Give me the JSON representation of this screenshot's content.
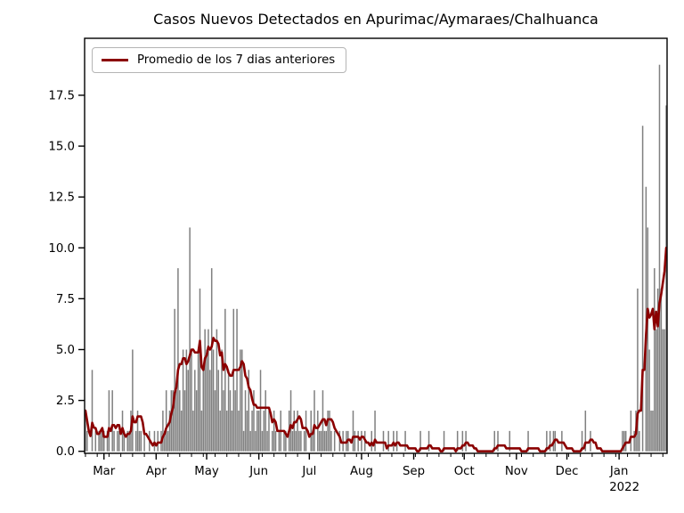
{
  "chart_data": {
    "type": "bar",
    "title": "Casos Nuevos Detectados en Apurimac/Aymaraes/Chalhuanca",
    "legend_label": "Promedio de los 7 dias anteriores",
    "legend_position": "upper left",
    "start_date": "2021-02-18",
    "daily_values": [
      2,
      1,
      0,
      0,
      4,
      0,
      1,
      0,
      1,
      1,
      1,
      1,
      0,
      1,
      3,
      0,
      3,
      1,
      0,
      1,
      1,
      0,
      2,
      1,
      0,
      1,
      1,
      2,
      5,
      0,
      1,
      2,
      1,
      1,
      0,
      1,
      0,
      0,
      1,
      0,
      0,
      1,
      0,
      1,
      0,
      1,
      2,
      1,
      3,
      1,
      2,
      3,
      3,
      7,
      3,
      9,
      3,
      2,
      5,
      3,
      5,
      4,
      11,
      5,
      2,
      4,
      3,
      5,
      8,
      2,
      4,
      6,
      5,
      6,
      4,
      9,
      5,
      3,
      6,
      4,
      2,
      5,
      3,
      7,
      2,
      4,
      3,
      2,
      7,
      3,
      7,
      2,
      5,
      5,
      1,
      3,
      2,
      4,
      1,
      2,
      3,
      1,
      2,
      2,
      4,
      1,
      2,
      3,
      1,
      2,
      0,
      1,
      2,
      1,
      0,
      1,
      2,
      0,
      1,
      1,
      0,
      2,
      3,
      1,
      2,
      1,
      2,
      1,
      1,
      0,
      1,
      2,
      0,
      0,
      2,
      1,
      3,
      0,
      2,
      1,
      1,
      3,
      1,
      1,
      2,
      2,
      1,
      0,
      1,
      0,
      0,
      1,
      0,
      1,
      0,
      1,
      1,
      0,
      0,
      2,
      1,
      0,
      1,
      0,
      1,
      0,
      1,
      0,
      0,
      0,
      1,
      0,
      2,
      0,
      0,
      0,
      0,
      1,
      0,
      0,
      1,
      0,
      0,
      1,
      0,
      1,
      0,
      0,
      0,
      0,
      1,
      0,
      0,
      0,
      0,
      0,
      0,
      0,
      0,
      1,
      0,
      0,
      0,
      0,
      1,
      0,
      0,
      0,
      0,
      0,
      0,
      0,
      0,
      1,
      0,
      0,
      0,
      0,
      0,
      0,
      0,
      1,
      0,
      0,
      1,
      0,
      1,
      0,
      0,
      0,
      0,
      0,
      0,
      0,
      0,
      0,
      0,
      0,
      0,
      0,
      0,
      0,
      0,
      1,
      0,
      1,
      0,
      0,
      0,
      0,
      0,
      0,
      1,
      0,
      0,
      0,
      0,
      0,
      0,
      0,
      0,
      0,
      0,
      1,
      0,
      0,
      0,
      0,
      0,
      0,
      0,
      0,
      0,
      0,
      1,
      0,
      1,
      0,
      1,
      1,
      0,
      0,
      0,
      1,
      0,
      0,
      0,
      0,
      0,
      0,
      0,
      0,
      0,
      0,
      0,
      1,
      0,
      2,
      0,
      0,
      1,
      0,
      0,
      0,
      0,
      0,
      0,
      0,
      0,
      0,
      0,
      0,
      0,
      0,
      0,
      0,
      0,
      0,
      0,
      1,
      1,
      1,
      0,
      0,
      2,
      0,
      1,
      2,
      8,
      1,
      0,
      16,
      0,
      13,
      11,
      5,
      2,
      2,
      9,
      6,
      8,
      19,
      8,
      6,
      6,
      17
    ],
    "series": [
      {
        "name": "Promedio de los 7 dias anteriores",
        "derived": "rolling_mean_window_7_of_daily_values"
      }
    ],
    "x_axis": {
      "month_ticks": [
        {
          "label": "Mar",
          "day": 11
        },
        {
          "label": "Apr",
          "day": 42
        },
        {
          "label": "May",
          "day": 72
        },
        {
          "label": "Jun",
          "day": 103
        },
        {
          "label": "Jul",
          "day": 133
        },
        {
          "label": "Aug",
          "day": 164
        },
        {
          "label": "Sep",
          "day": 195
        },
        {
          "label": "Oct",
          "day": 225
        },
        {
          "label": "Nov",
          "day": 256
        },
        {
          "label": "Dec",
          "day": 286
        },
        {
          "label": "Jan",
          "day": 317
        }
      ],
      "year_label": "2022",
      "year_label_under": "Jan",
      "minor_tick_every_days": 7
    },
    "y_axis": {
      "tick_labels": [
        "0.0",
        "2.5",
        "5.0",
        "7.5",
        "10.0",
        "12.5",
        "15.0",
        "17.5"
      ],
      "tick_values": [
        0,
        2.5,
        5,
        7.5,
        10,
        12.5,
        15,
        17.5
      ],
      "lim": [
        -0.1,
        20.3
      ],
      "grid": false
    },
    "colors": {
      "bar": "#808080",
      "line": "#8b0000",
      "axis": "#000000",
      "text": "#000000",
      "background": "#ffffff",
      "legend_border": "#b5b5b5"
    }
  }
}
